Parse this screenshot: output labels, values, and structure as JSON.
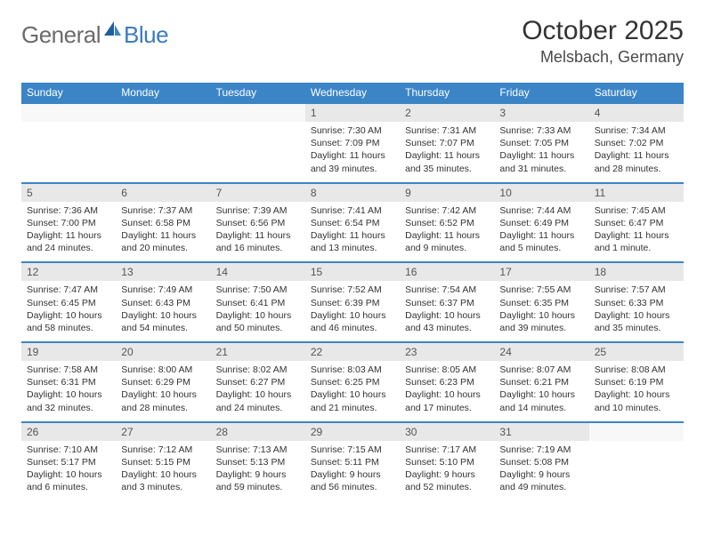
{
  "brand": {
    "part1": "General",
    "part2": "Blue"
  },
  "title": "October 2025",
  "location": "Melsbach, Germany",
  "colors": {
    "header_bg": "#3b85c7",
    "daynum_bg": "#e8e8e8",
    "border": "#3b85c7",
    "text": "#333333",
    "brand_gray": "#6b6b6b",
    "brand_blue": "#3b7bbf"
  },
  "weekdays": [
    "Sunday",
    "Monday",
    "Tuesday",
    "Wednesday",
    "Thursday",
    "Friday",
    "Saturday"
  ],
  "weeks": [
    {
      "nums": [
        "",
        "",
        "",
        "1",
        "2",
        "3",
        "4"
      ],
      "cells": [
        null,
        null,
        null,
        {
          "sr": "Sunrise: 7:30 AM",
          "ss": "Sunset: 7:09 PM",
          "dl1": "Daylight: 11 hours",
          "dl2": "and 39 minutes."
        },
        {
          "sr": "Sunrise: 7:31 AM",
          "ss": "Sunset: 7:07 PM",
          "dl1": "Daylight: 11 hours",
          "dl2": "and 35 minutes."
        },
        {
          "sr": "Sunrise: 7:33 AM",
          "ss": "Sunset: 7:05 PM",
          "dl1": "Daylight: 11 hours",
          "dl2": "and 31 minutes."
        },
        {
          "sr": "Sunrise: 7:34 AM",
          "ss": "Sunset: 7:02 PM",
          "dl1": "Daylight: 11 hours",
          "dl2": "and 28 minutes."
        }
      ]
    },
    {
      "nums": [
        "5",
        "6",
        "7",
        "8",
        "9",
        "10",
        "11"
      ],
      "cells": [
        {
          "sr": "Sunrise: 7:36 AM",
          "ss": "Sunset: 7:00 PM",
          "dl1": "Daylight: 11 hours",
          "dl2": "and 24 minutes."
        },
        {
          "sr": "Sunrise: 7:37 AM",
          "ss": "Sunset: 6:58 PM",
          "dl1": "Daylight: 11 hours",
          "dl2": "and 20 minutes."
        },
        {
          "sr": "Sunrise: 7:39 AM",
          "ss": "Sunset: 6:56 PM",
          "dl1": "Daylight: 11 hours",
          "dl2": "and 16 minutes."
        },
        {
          "sr": "Sunrise: 7:41 AM",
          "ss": "Sunset: 6:54 PM",
          "dl1": "Daylight: 11 hours",
          "dl2": "and 13 minutes."
        },
        {
          "sr": "Sunrise: 7:42 AM",
          "ss": "Sunset: 6:52 PM",
          "dl1": "Daylight: 11 hours",
          "dl2": "and 9 minutes."
        },
        {
          "sr": "Sunrise: 7:44 AM",
          "ss": "Sunset: 6:49 PM",
          "dl1": "Daylight: 11 hours",
          "dl2": "and 5 minutes."
        },
        {
          "sr": "Sunrise: 7:45 AM",
          "ss": "Sunset: 6:47 PM",
          "dl1": "Daylight: 11 hours",
          "dl2": "and 1 minute."
        }
      ]
    },
    {
      "nums": [
        "12",
        "13",
        "14",
        "15",
        "16",
        "17",
        "18"
      ],
      "cells": [
        {
          "sr": "Sunrise: 7:47 AM",
          "ss": "Sunset: 6:45 PM",
          "dl1": "Daylight: 10 hours",
          "dl2": "and 58 minutes."
        },
        {
          "sr": "Sunrise: 7:49 AM",
          "ss": "Sunset: 6:43 PM",
          "dl1": "Daylight: 10 hours",
          "dl2": "and 54 minutes."
        },
        {
          "sr": "Sunrise: 7:50 AM",
          "ss": "Sunset: 6:41 PM",
          "dl1": "Daylight: 10 hours",
          "dl2": "and 50 minutes."
        },
        {
          "sr": "Sunrise: 7:52 AM",
          "ss": "Sunset: 6:39 PM",
          "dl1": "Daylight: 10 hours",
          "dl2": "and 46 minutes."
        },
        {
          "sr": "Sunrise: 7:54 AM",
          "ss": "Sunset: 6:37 PM",
          "dl1": "Daylight: 10 hours",
          "dl2": "and 43 minutes."
        },
        {
          "sr": "Sunrise: 7:55 AM",
          "ss": "Sunset: 6:35 PM",
          "dl1": "Daylight: 10 hours",
          "dl2": "and 39 minutes."
        },
        {
          "sr": "Sunrise: 7:57 AM",
          "ss": "Sunset: 6:33 PM",
          "dl1": "Daylight: 10 hours",
          "dl2": "and 35 minutes."
        }
      ]
    },
    {
      "nums": [
        "19",
        "20",
        "21",
        "22",
        "23",
        "24",
        "25"
      ],
      "cells": [
        {
          "sr": "Sunrise: 7:58 AM",
          "ss": "Sunset: 6:31 PM",
          "dl1": "Daylight: 10 hours",
          "dl2": "and 32 minutes."
        },
        {
          "sr": "Sunrise: 8:00 AM",
          "ss": "Sunset: 6:29 PM",
          "dl1": "Daylight: 10 hours",
          "dl2": "and 28 minutes."
        },
        {
          "sr": "Sunrise: 8:02 AM",
          "ss": "Sunset: 6:27 PM",
          "dl1": "Daylight: 10 hours",
          "dl2": "and 24 minutes."
        },
        {
          "sr": "Sunrise: 8:03 AM",
          "ss": "Sunset: 6:25 PM",
          "dl1": "Daylight: 10 hours",
          "dl2": "and 21 minutes."
        },
        {
          "sr": "Sunrise: 8:05 AM",
          "ss": "Sunset: 6:23 PM",
          "dl1": "Daylight: 10 hours",
          "dl2": "and 17 minutes."
        },
        {
          "sr": "Sunrise: 8:07 AM",
          "ss": "Sunset: 6:21 PM",
          "dl1": "Daylight: 10 hours",
          "dl2": "and 14 minutes."
        },
        {
          "sr": "Sunrise: 8:08 AM",
          "ss": "Sunset: 6:19 PM",
          "dl1": "Daylight: 10 hours",
          "dl2": "and 10 minutes."
        }
      ]
    },
    {
      "nums": [
        "26",
        "27",
        "28",
        "29",
        "30",
        "31",
        ""
      ],
      "cells": [
        {
          "sr": "Sunrise: 7:10 AM",
          "ss": "Sunset: 5:17 PM",
          "dl1": "Daylight: 10 hours",
          "dl2": "and 6 minutes."
        },
        {
          "sr": "Sunrise: 7:12 AM",
          "ss": "Sunset: 5:15 PM",
          "dl1": "Daylight: 10 hours",
          "dl2": "and 3 minutes."
        },
        {
          "sr": "Sunrise: 7:13 AM",
          "ss": "Sunset: 5:13 PM",
          "dl1": "Daylight: 9 hours",
          "dl2": "and 59 minutes."
        },
        {
          "sr": "Sunrise: 7:15 AM",
          "ss": "Sunset: 5:11 PM",
          "dl1": "Daylight: 9 hours",
          "dl2": "and 56 minutes."
        },
        {
          "sr": "Sunrise: 7:17 AM",
          "ss": "Sunset: 5:10 PM",
          "dl1": "Daylight: 9 hours",
          "dl2": "and 52 minutes."
        },
        {
          "sr": "Sunrise: 7:19 AM",
          "ss": "Sunset: 5:08 PM",
          "dl1": "Daylight: 9 hours",
          "dl2": "and 49 minutes."
        },
        null
      ]
    }
  ]
}
